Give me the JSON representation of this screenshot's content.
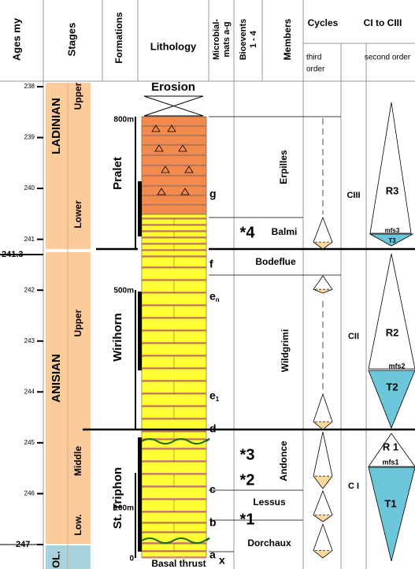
{
  "header": {
    "ages": "Ages my",
    "stages": "Stages",
    "formations": "Formations",
    "lithology": "Lithology",
    "microbial": [
      "Microbial-",
      "mats a-g"
    ],
    "bioevents": [
      "Bioevents",
      "1 - 4"
    ],
    "members": "Members",
    "cycles": "Cycles",
    "ci_ciii": "CI to CIII",
    "third_order": [
      "third",
      "order"
    ],
    "second_order": "second order"
  },
  "ages": {
    "ticks": [
      238,
      239,
      240,
      241,
      242,
      243,
      244,
      245,
      246,
      247
    ],
    "boundary": 241.3
  },
  "stages": [
    {
      "name": "LADINIAN",
      "substages": [
        "Upper",
        "Lower"
      ]
    },
    {
      "name": "ANISIAN",
      "substages": [
        "Upper",
        "Middle",
        "Low."
      ]
    },
    {
      "name": "OL."
    }
  ],
  "formations": [
    "Pralet",
    "Wirihorn",
    "St. Triphon"
  ],
  "thickness": [
    "800m",
    "500m",
    "100m",
    "0"
  ],
  "lithology": {
    "top": "Erosion",
    "base": "Basal thrust"
  },
  "microbial_mats": [
    {
      "letter": "g"
    },
    {
      "letter": "f"
    },
    {
      "letter": "e",
      "sub": "n"
    },
    {
      "letter": "e",
      "sub": "1"
    },
    {
      "letter": "d"
    },
    {
      "letter": "c"
    },
    {
      "letter": "b"
    },
    {
      "letter": "a"
    },
    {
      "letter": "x"
    }
  ],
  "bioevents": [
    "*4",
    "*3",
    "*2",
    "*1"
  ],
  "members": [
    "Erpilles",
    "Balmi",
    "Bodeflue",
    "Wildgrimi",
    "Andonce",
    "Lessus",
    "Dorchaux"
  ],
  "cycles_ci": [
    "CIII",
    "CII",
    "C I"
  ],
  "second_order": [
    "R3",
    "mfs3",
    "T3",
    "R2",
    "mfs2",
    "T2",
    "R 1",
    "mfs1",
    "T1"
  ]
}
